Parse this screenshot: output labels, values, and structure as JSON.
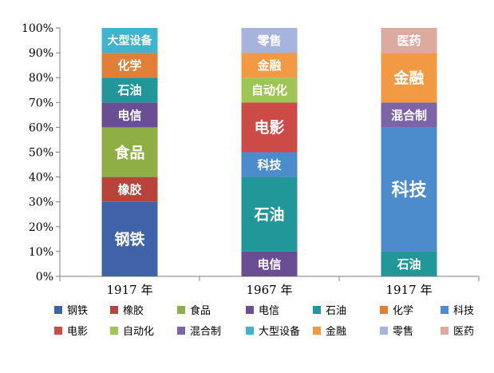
{
  "chart_data": {
    "type": "bar",
    "stacked": true,
    "categories": [
      "1917 年",
      "1967 年",
      "1917 年"
    ],
    "y_ticks": [
      "0%",
      "10%",
      "20%",
      "30%",
      "40%",
      "50%",
      "60%",
      "70%",
      "80%",
      "90%",
      "100%"
    ],
    "ylim": [
      0,
      100
    ],
    "grid": false,
    "legend_placement": "bottom",
    "legend": [
      {
        "name": "钢铁",
        "color": "#3f62a8"
      },
      {
        "name": "橡胶",
        "color": "#b8433a"
      },
      {
        "name": "食品",
        "color": "#8faf44"
      },
      {
        "name": "电信",
        "color": "#6a4e94"
      },
      {
        "name": "石油",
        "color": "#22979a"
      },
      {
        "name": "化学",
        "color": "#e07f35"
      },
      {
        "name": "科技",
        "color": "#4c8ccc"
      },
      {
        "name": "电影",
        "color": "#cc4b47"
      },
      {
        "name": "自动化",
        "color": "#9ec555"
      },
      {
        "name": "混合制",
        "color": "#7d63a8"
      },
      {
        "name": "大型设备",
        "color": "#3fb4ce"
      },
      {
        "name": "金融",
        "color": "#f19a43"
      },
      {
        "name": "零售",
        "color": "#a6b3dc"
      },
      {
        "name": "医药",
        "color": "#dcaa9f"
      }
    ],
    "stacks": [
      [
        {
          "name": "钢铁",
          "value": 30
        },
        {
          "name": "橡胶",
          "value": 10
        },
        {
          "name": "食品",
          "value": 20
        },
        {
          "name": "电信",
          "value": 10
        },
        {
          "name": "石油",
          "value": 10
        },
        {
          "name": "化学",
          "value": 10
        },
        {
          "name": "大型设备",
          "value": 10
        }
      ],
      [
        {
          "name": "电信",
          "value": 10
        },
        {
          "name": "石油",
          "value": 30
        },
        {
          "name": "科技",
          "value": 10
        },
        {
          "name": "电影",
          "value": 20
        },
        {
          "name": "自动化",
          "value": 10
        },
        {
          "name": "金融",
          "value": 10
        },
        {
          "name": "零售",
          "value": 10
        }
      ],
      [
        {
          "name": "石油",
          "value": 10
        },
        {
          "name": "科技",
          "value": 50
        },
        {
          "name": "混合制",
          "value": 10
        },
        {
          "name": "金融",
          "value": 20
        },
        {
          "name": "医药",
          "value": 10
        }
      ]
    ]
  }
}
